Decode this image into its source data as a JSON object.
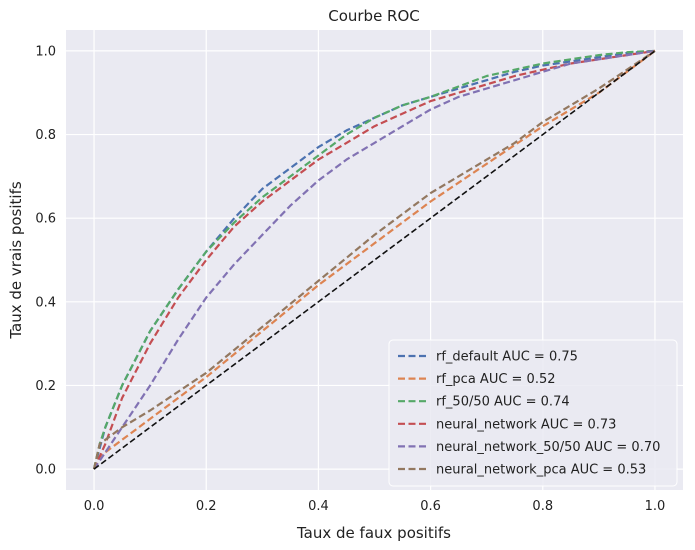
{
  "chart_data": {
    "type": "line",
    "title": "Courbe ROC",
    "xlabel": "Taux de faux positifs",
    "ylabel": "Taux de vrais positifs",
    "xlim": [
      -0.05,
      1.05
    ],
    "ylim": [
      -0.05,
      1.05
    ],
    "xticks": [
      "0.0",
      "0.2",
      "0.4",
      "0.6",
      "0.8",
      "1.0"
    ],
    "yticks": [
      "0.0",
      "0.2",
      "0.4",
      "0.6",
      "0.8",
      "1.0"
    ],
    "grid": true,
    "legend_position": "bottom-right",
    "background": "#eaeaf2",
    "series": [
      {
        "name": "rf_default AUC = 0.75",
        "color": "#4c72b0",
        "dash": true,
        "x": [
          0,
          0.01,
          0.02,
          0.05,
          0.1,
          0.15,
          0.2,
          0.25,
          0.3,
          0.35,
          0.4,
          0.45,
          0.5,
          0.55,
          0.6,
          0.65,
          0.7,
          0.75,
          0.8,
          0.85,
          0.9,
          0.95,
          1.0
        ],
        "y": [
          0,
          0.05,
          0.1,
          0.2,
          0.33,
          0.43,
          0.52,
          0.6,
          0.67,
          0.72,
          0.77,
          0.81,
          0.84,
          0.87,
          0.89,
          0.91,
          0.93,
          0.95,
          0.965,
          0.975,
          0.985,
          0.995,
          1.0
        ]
      },
      {
        "name": "rf_pca AUC = 0.52",
        "color": "#dd8452",
        "dash": true,
        "x": [
          0,
          0.01,
          0.05,
          0.1,
          0.2,
          0.3,
          0.4,
          0.5,
          0.6,
          0.7,
          0.8,
          0.9,
          1.0
        ],
        "y": [
          0,
          0.03,
          0.07,
          0.12,
          0.22,
          0.33,
          0.44,
          0.54,
          0.64,
          0.73,
          0.82,
          0.9,
          1.0
        ]
      },
      {
        "name": "rf_50/50 AUC = 0.74",
        "color": "#55a868",
        "dash": true,
        "x": [
          0,
          0.01,
          0.02,
          0.05,
          0.1,
          0.15,
          0.2,
          0.25,
          0.3,
          0.35,
          0.4,
          0.45,
          0.5,
          0.55,
          0.6,
          0.65,
          0.7,
          0.75,
          0.8,
          0.85,
          0.9,
          0.95,
          1.0
        ],
        "y": [
          0,
          0.06,
          0.1,
          0.2,
          0.33,
          0.43,
          0.52,
          0.59,
          0.65,
          0.7,
          0.75,
          0.8,
          0.84,
          0.87,
          0.89,
          0.915,
          0.94,
          0.955,
          0.97,
          0.98,
          0.99,
          0.997,
          1.0
        ]
      },
      {
        "name": "neural_network AUC = 0.73",
        "color": "#c44e52",
        "dash": true,
        "x": [
          0,
          0.01,
          0.02,
          0.05,
          0.1,
          0.15,
          0.2,
          0.25,
          0.3,
          0.35,
          0.4,
          0.45,
          0.5,
          0.55,
          0.6,
          0.65,
          0.7,
          0.75,
          0.8,
          0.85,
          0.9,
          0.95,
          1.0
        ],
        "y": [
          0,
          0.03,
          0.06,
          0.17,
          0.3,
          0.41,
          0.5,
          0.58,
          0.64,
          0.69,
          0.74,
          0.78,
          0.82,
          0.85,
          0.88,
          0.9,
          0.92,
          0.94,
          0.955,
          0.97,
          0.98,
          0.99,
          1.0
        ]
      },
      {
        "name": "neural_network_50/50 AUC = 0.70",
        "color": "#8172b3",
        "dash": true,
        "x": [
          0,
          0.01,
          0.02,
          0.05,
          0.1,
          0.15,
          0.2,
          0.25,
          0.3,
          0.35,
          0.4,
          0.45,
          0.5,
          0.55,
          0.6,
          0.65,
          0.7,
          0.75,
          0.8,
          0.85,
          0.9,
          0.95,
          1.0
        ],
        "y": [
          0,
          0.02,
          0.04,
          0.1,
          0.2,
          0.31,
          0.41,
          0.49,
          0.56,
          0.63,
          0.69,
          0.74,
          0.78,
          0.82,
          0.86,
          0.89,
          0.91,
          0.93,
          0.95,
          0.97,
          0.98,
          0.99,
          1.0
        ]
      },
      {
        "name": "neural_network_pca AUC = 0.53",
        "color": "#937860",
        "dash": true,
        "x": [
          0,
          0.01,
          0.05,
          0.1,
          0.2,
          0.3,
          0.4,
          0.5,
          0.6,
          0.7,
          0.75,
          0.8,
          0.9,
          1.0
        ],
        "y": [
          0,
          0.06,
          0.1,
          0.14,
          0.23,
          0.34,
          0.45,
          0.56,
          0.66,
          0.74,
          0.78,
          0.83,
          0.91,
          1.0
        ]
      },
      {
        "name": "",
        "color": "#111111",
        "dash": true,
        "baseline": true,
        "x": [
          0,
          1.0
        ],
        "y": [
          0,
          1.0
        ]
      }
    ]
  }
}
